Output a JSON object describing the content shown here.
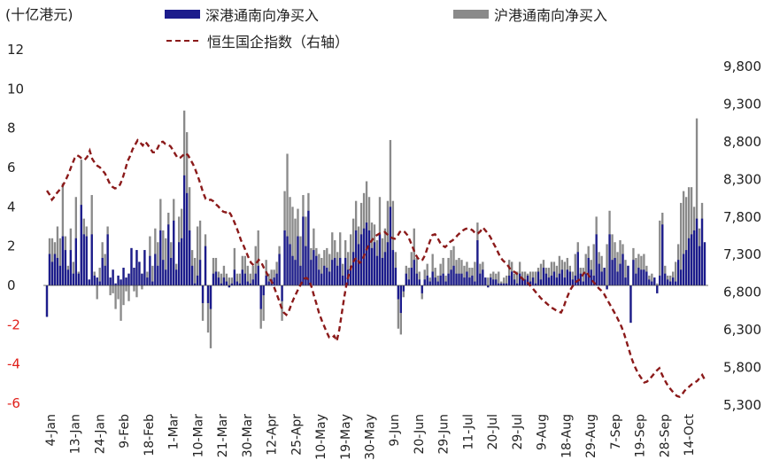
{
  "unit_label": "(十亿港元)",
  "legend": {
    "series_a": "深港通南向净买入",
    "series_b": "沪港通南向净买入",
    "series_line": "恒生国企指数（右轴）"
  },
  "colors": {
    "series_a": "#1c1c8c",
    "series_b": "#8a8a8a",
    "series_line": "#8b1a1a"
  },
  "chart_data": {
    "type": "bar",
    "stacked": true,
    "grid": false,
    "legend_position": "top",
    "ylim_left": [
      -6,
      12
    ],
    "ylim_right": [
      5300,
      9800
    ],
    "yticks_left": [
      "12",
      "10",
      "8",
      "6",
      "4",
      "2",
      "0",
      "-2",
      "-4",
      "-6"
    ],
    "yticks_right": [
      "9,800",
      "9,300",
      "8,800",
      "8,300",
      "7,800",
      "7,300",
      "6,800",
      "6,300",
      "5,800",
      "5,300"
    ],
    "xtick_labels": [
      "4-Jan",
      "13-Jan",
      "24-Jan",
      "9-Feb",
      "18-Feb",
      "1-Mar",
      "10-Mar",
      "21-Mar",
      "30-Mar",
      "12-Apr",
      "25-Apr",
      "10-May",
      "19-May",
      "30-May",
      "9-Jun",
      "20-Jun",
      "29-Jun",
      "11-Jul",
      "20-Jul",
      "29-Jul",
      "9-Aug",
      "18-Aug",
      "29-Aug",
      "7-Sep",
      "19-Sep",
      "28-Sep",
      "14-Oct"
    ],
    "series": [
      {
        "name": "深港通南向净买入",
        "values": [
          -1.6,
          1.6,
          1.2,
          1.6,
          1.4,
          1.0,
          2.5,
          1.8,
          0.8,
          1.8,
          0.6,
          2.4,
          0.6,
          4.1,
          2.6,
          2.5,
          0.3,
          2.6,
          0.5,
          0.4,
          0.2,
          1.4,
          1.0,
          2.6,
          0.4,
          0.8,
          0.1,
          0.5,
          0.3,
          0.9,
          0.4,
          0.6,
          1.9,
          0.9,
          1.8,
          1.2,
          0.6,
          1.8,
          0.4,
          1.5,
          0.2,
          1.6,
          1.0,
          2.8,
          1.3,
          0.8,
          3.1,
          1.4,
          3.3,
          0.8,
          2.2,
          2.4,
          5.6,
          4.7,
          2.8,
          1.0,
          0.1,
          0.5,
          1.3,
          -0.9,
          2.0,
          -0.9,
          -1.2,
          0.6,
          0.7,
          0.4,
          0.1,
          0.4,
          0.2,
          -0.1,
          0.1,
          0.8,
          0.2,
          0.1,
          0.8,
          0.6,
          0.2,
          0.1,
          0.3,
          0.6,
          1.0,
          -1.2,
          -0.5,
          0.5,
          0.2,
          0.3,
          0.4,
          0.6,
          1.6,
          -0.8,
          2.8,
          2.5,
          2.1,
          1.5,
          1.3,
          2.5,
          1.0,
          3.5,
          2.0,
          3.8,
          1.3,
          1.8,
          1.5,
          0.8,
          0.6,
          1.0,
          0.9,
          0.7,
          1.3,
          1.4,
          1.0,
          1.4,
          0.5,
          1.4,
          0.8,
          1.0,
          1.7,
          2.8,
          2.1,
          2.6,
          2.9,
          3.2,
          2.8,
          1.9,
          2.2,
          1.5,
          2.6,
          1.4,
          1.7,
          2.2,
          4.0,
          1.8,
          0.9,
          -0.7,
          -1.4,
          -0.3,
          0.6,
          0.3,
          0.9,
          1.3,
          0.6,
          0.3,
          -0.4,
          0.3,
          0.5,
          0.2,
          0.7,
          0.4,
          0.2,
          0.5,
          0.6,
          0.2,
          0.6,
          0.8,
          1.0,
          0.6,
          0.6,
          0.6,
          0.4,
          0.7,
          0.4,
          0.5,
          0.2,
          2.3,
          0.6,
          0.8,
          0.4,
          -0.1,
          0.4,
          0.3,
          0.3,
          0.1,
          0.1,
          0.1,
          0.1,
          0.5,
          0.7,
          0.3,
          0.1,
          0.6,
          0.4,
          0.3,
          0.5,
          0.2,
          0.4,
          0.1,
          0.7,
          0.3,
          0.9,
          0.6,
          0.4,
          0.5,
          0.7,
          0.4,
          0.6,
          0.8,
          0.4,
          0.8,
          0.7,
          0.3,
          0.5,
          1.7,
          0.6,
          0.2,
          0.6,
          1.4,
          0.8,
          0.5,
          2.6,
          1.1,
          0.7,
          0.9,
          -0.2,
          2.6,
          1.3,
          1.4,
          0.7,
          1.1,
          1.6,
          0.4,
          1.0,
          -1.9,
          1.3,
          0.6,
          0.9,
          0.8,
          0.8,
          0.7,
          0.3,
          0.2,
          0.4,
          -0.4,
          0.5,
          3.1,
          0.6,
          0.3,
          0.2,
          0.4,
          0.2,
          1.3,
          0.8,
          1.6,
          1.8,
          2.4,
          2.6,
          2.8,
          3.4,
          2.0,
          3.4,
          2.2
        ]
      },
      {
        "name": "沪港通南向净买入",
        "values": [
          0.0,
          0.8,
          1.2,
          0.6,
          1.6,
          1.4,
          2.7,
          0.7,
          0.2,
          1.1,
          0.6,
          2.1,
          0.1,
          2.3,
          0.8,
          0.5,
          -0.3,
          2.0,
          0.2,
          -1.1,
          0.7,
          0.8,
          0.6,
          0.4,
          -0.9,
          -1.2,
          -1.3,
          -1.2,
          -2.1,
          -1.9,
          -0.7,
          -1.4,
          -1.2,
          -1.2,
          -2.4,
          -0.6,
          -0.8,
          -0.8,
          0.3,
          1.0,
          0.8,
          1.3,
          1.2,
          1.6,
          1.5,
          1.6,
          0.6,
          0.8,
          1.1,
          0.3,
          1.3,
          1.5,
          3.3,
          3.1,
          2.2,
          0.8,
          1.3,
          2.5,
          2.0,
          -0.9,
          0.6,
          -1.5,
          -2.0,
          0.8,
          0.7,
          0.3,
          0.5,
          0.6,
          0.4,
          0.5,
          0.3,
          1.1,
          0.4,
          0.5,
          0.7,
          0.9,
          0.8,
          0.5,
          0.7,
          1.4,
          1.8,
          -1.0,
          -1.3,
          0.8,
          0.4,
          0.5,
          0.4,
          0.6,
          0.4,
          -1.0,
          2.0,
          4.2,
          2.4,
          2.5,
          2.1,
          1.4,
          1.5,
          1.1,
          1.5,
          0.9,
          0.6,
          1.1,
          0.4,
          0.8,
          0.8,
          0.8,
          1.0,
          0.9,
          1.4,
          0.9,
          0.7,
          1.3,
          0.6,
          0.9,
          0.9,
          1.6,
          1.7,
          1.5,
          0.9,
          1.6,
          1.8,
          2.1,
          1.7,
          1.3,
          0.9,
          0.8,
          1.9,
          1.0,
          1.2,
          2.1,
          3.4,
          2.5,
          0.8,
          -1.5,
          -1.1,
          -0.3,
          0.4,
          0.6,
          0.8,
          1.6,
          0.8,
          0.4,
          -0.3,
          0.5,
          0.6,
          0.2,
          0.9,
          0.5,
          0.3,
          0.6,
          0.8,
          0.3,
          0.8,
          1.0,
          1.0,
          0.7,
          0.8,
          0.7,
          0.6,
          0.5,
          0.5,
          0.4,
          1.0,
          0.9,
          0.5,
          0.4,
          -0.4,
          0.5,
          0.2,
          0.4,
          0.3,
          0.6,
          0.1,
          0.3,
          0.4,
          0.8,
          0.5,
          0.3,
          0.6,
          0.6,
          0.3,
          0.4,
          0.1,
          0.5,
          0.3,
          0.6,
          0.2,
          0.8,
          0.4,
          0.3,
          0.5,
          0.7,
          0.5,
          0.6,
          0.9,
          0.5,
          0.8,
          0.6,
          0.3,
          0.4,
          1.1,
          0.5,
          0.3,
          0.7,
          1.0,
          0.6,
          0.5,
          1.6,
          0.9,
          0.6,
          0.8,
          -0.2,
          2.3,
          1.2,
          1.3,
          0.8,
          1.0,
          1.2,
          0.5,
          0.9,
          -0.8,
          1.2,
          0.6,
          0.8,
          0.7,
          0.7,
          0.8,
          0.3,
          0.2,
          0.4,
          -0.3,
          0.5,
          2.8,
          0.6,
          0.4,
          0.2,
          0.3,
          0.3,
          1.0,
          0.8,
          3.4,
          3.2,
          2.7,
          2.6,
          2.4,
          1.2,
          5.1,
          0.9,
          0.8
        ]
      },
      {
        "name": "恒生国企指数（右轴）",
        "type": "line",
        "axis": "right",
        "values": [
          8150,
          8100,
          8030,
          8070,
          8120,
          8160,
          8200,
          8260,
          8330,
          8410,
          8500,
          8580,
          8620,
          8600,
          8570,
          8560,
          8600,
          8680,
          8570,
          8520,
          8480,
          8460,
          8420,
          8380,
          8310,
          8240,
          8200,
          8180,
          8190,
          8230,
          8310,
          8420,
          8540,
          8610,
          8700,
          8760,
          8820,
          8790,
          8750,
          8800,
          8760,
          8710,
          8660,
          8660,
          8720,
          8790,
          8800,
          8770,
          8760,
          8740,
          8690,
          8630,
          8580,
          8590,
          8620,
          8650,
          8620,
          8560,
          8500,
          8420,
          8330,
          8230,
          8120,
          8040,
          8020,
          8030,
          8010,
          7970,
          7940,
          7900,
          7870,
          7860,
          7880,
          7830,
          7760,
          7680,
          7590,
          7490,
          7420,
          7340,
          7260,
          7190,
          7160,
          7180,
          7230,
          7200,
          7130,
          7070,
          7000,
          6950,
          6880,
          6790,
          6700,
          6600,
          6530,
          6500,
          6550,
          6640,
          6720,
          6790,
          6860,
          6920,
          6980,
          6990,
          6960,
          6870,
          6750,
          6640,
          6520,
          6430,
          6350,
          6270,
          6200,
          6190,
          6220,
          6150,
          6300,
          6520,
          6740,
          6930,
          7060,
          7160,
          7230,
          7260,
          7190,
          7210,
          7300,
          7380,
          7450,
          7490,
          7540,
          7560,
          7580,
          7590,
          7600,
          7570,
          7540,
          7520,
          7510,
          7540,
          7600,
          7620,
          7600,
          7560,
          7490,
          7410,
          7320,
          7260,
          7220,
          7230,
          7290,
          7390,
          7480,
          7560,
          7570,
          7520,
          7460,
          7420,
          7400,
          7430,
          7470,
          7490,
          7520,
          7560,
          7590,
          7620,
          7640,
          7650,
          7640,
          7620,
          7580,
          7580,
          7610,
          7660,
          7620,
          7580,
          7530,
          7460,
          7400,
          7330,
          7260,
          7220,
          7190,
          7150,
          7100,
          7080,
          7060,
          7030,
          7000,
          6970,
          6940,
          6920,
          6880,
          6840,
          6800,
          6760,
          6720,
          6690,
          6660,
          6630,
          6600,
          6580,
          6560,
          6540,
          6530,
          6600,
          6700,
          6780,
          6850,
          6900,
          6940,
          6960,
          7000,
          7050,
          7080,
          7020,
          6970,
          6930,
          6890,
          6850,
          6820,
          6780,
          6720,
          6660,
          6600,
          6540,
          6480,
          6410,
          6340,
          6250,
          6140,
          6030,
          5920,
          5830,
          5760,
          5700,
          5650,
          5600,
          5610,
          5640,
          5680,
          5720,
          5760,
          5790,
          5710,
          5640,
          5580,
          5530,
          5490,
          5450,
          5420,
          5410,
          5440,
          5490,
          5520,
          5550,
          5580,
          5600,
          5620,
          5660,
          5700,
          5640
        ]
      }
    ]
  }
}
